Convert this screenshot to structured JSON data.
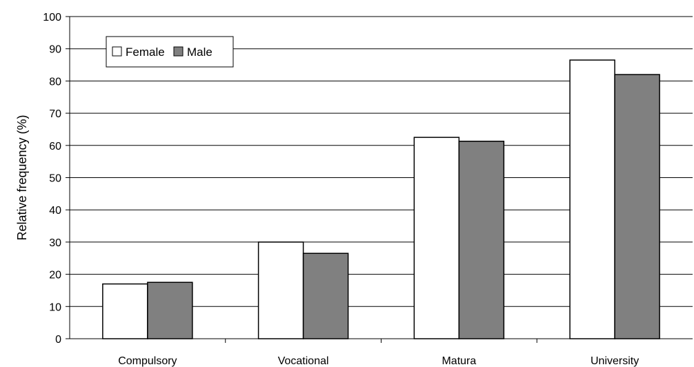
{
  "chart_data": {
    "type": "bar",
    "categories": [
      "Compulsory",
      "Vocational",
      "Matura",
      "University"
    ],
    "series": [
      {
        "name": "Female",
        "values": [
          17,
          30,
          62.5,
          86.5
        ],
        "color": "#ffffff"
      },
      {
        "name": "Male",
        "values": [
          17.5,
          26.5,
          61.3,
          82
        ],
        "color": "#808080"
      }
    ],
    "ylabel": "Relative frequency (%)",
    "xlabel": "",
    "title": "",
    "ylim": [
      0,
      100
    ],
    "yticks": [
      0,
      10,
      20,
      30,
      40,
      50,
      60,
      70,
      80,
      90,
      100
    ],
    "grid": true,
    "legend_position": "top-left"
  }
}
